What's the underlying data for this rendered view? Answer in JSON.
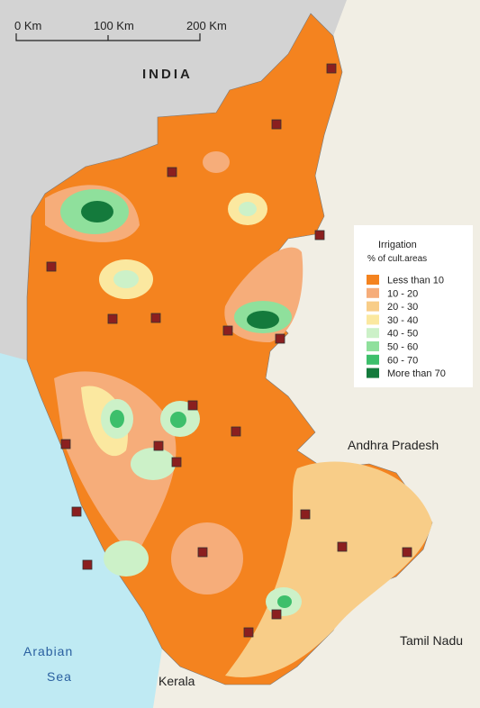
{
  "scale_bar": {
    "labels": [
      "0 Km",
      "100 Km",
      "200 Km"
    ]
  },
  "labels": {
    "country": "INDIA",
    "sea": [
      "Arabian",
      "Sea"
    ],
    "states": [
      "Andhra Pradesh",
      "Tamil Nadu",
      "Kerala"
    ]
  },
  "legend": {
    "title": "Irrigation",
    "subtitle": "% of cult.areas",
    "items": [
      {
        "label": "Less than 10",
        "color": "#f4831f"
      },
      {
        "label": "10 - 20",
        "color": "#f6ad7a"
      },
      {
        "label": "20 - 30",
        "color": "#f8cd88"
      },
      {
        "label": "30 - 40",
        "color": "#fbe8a0"
      },
      {
        "label": "40 - 50",
        "color": "#ccf1c8"
      },
      {
        "label": "50 - 60",
        "color": "#8fe09c"
      },
      {
        "label": "60 - 70",
        "color": "#3dbf6b"
      },
      {
        "label": "More than 70",
        "color": "#147a3c"
      }
    ]
  }
}
